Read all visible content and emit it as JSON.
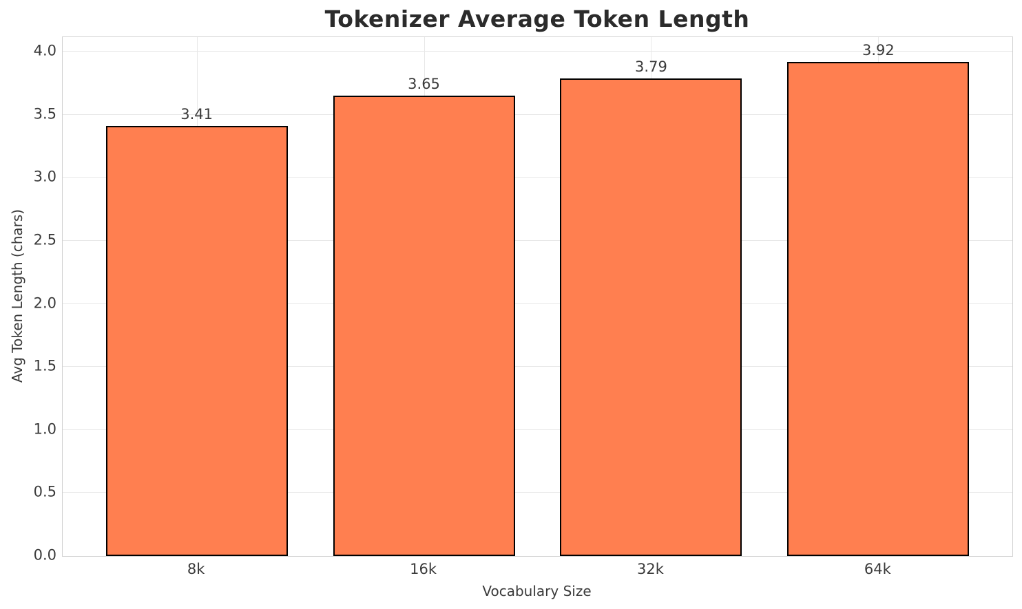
{
  "colors": {
    "bar_fill": "#FF7F50",
    "bar_edge": "#000000",
    "grid": "#e8e8e8",
    "spine": "#d0d0d0",
    "text": "#3a3a3a",
    "title": "#2b2b2b"
  },
  "chart_data": {
    "type": "bar",
    "title": "Tokenizer Average Token Length",
    "xlabel": "Vocabulary Size",
    "ylabel": "Avg Token Length (chars)",
    "categories": [
      "8k",
      "16k",
      "32k",
      "64k"
    ],
    "values": [
      3.41,
      3.65,
      3.79,
      3.92
    ],
    "value_labels": [
      "3.41",
      "3.65",
      "3.79",
      "3.92"
    ],
    "ylim": [
      0,
      4.116
    ],
    "xlim": [
      -0.59,
      3.59
    ],
    "yticks": [
      0.0,
      0.5,
      1.0,
      1.5,
      2.0,
      2.5,
      3.0,
      3.5,
      4.0
    ],
    "ytick_labels": [
      "0.0",
      "0.5",
      "1.0",
      "1.5",
      "2.0",
      "2.5",
      "3.0",
      "3.5",
      "4.0"
    ],
    "bar_width": 0.8,
    "grid": true,
    "legend": false
  }
}
